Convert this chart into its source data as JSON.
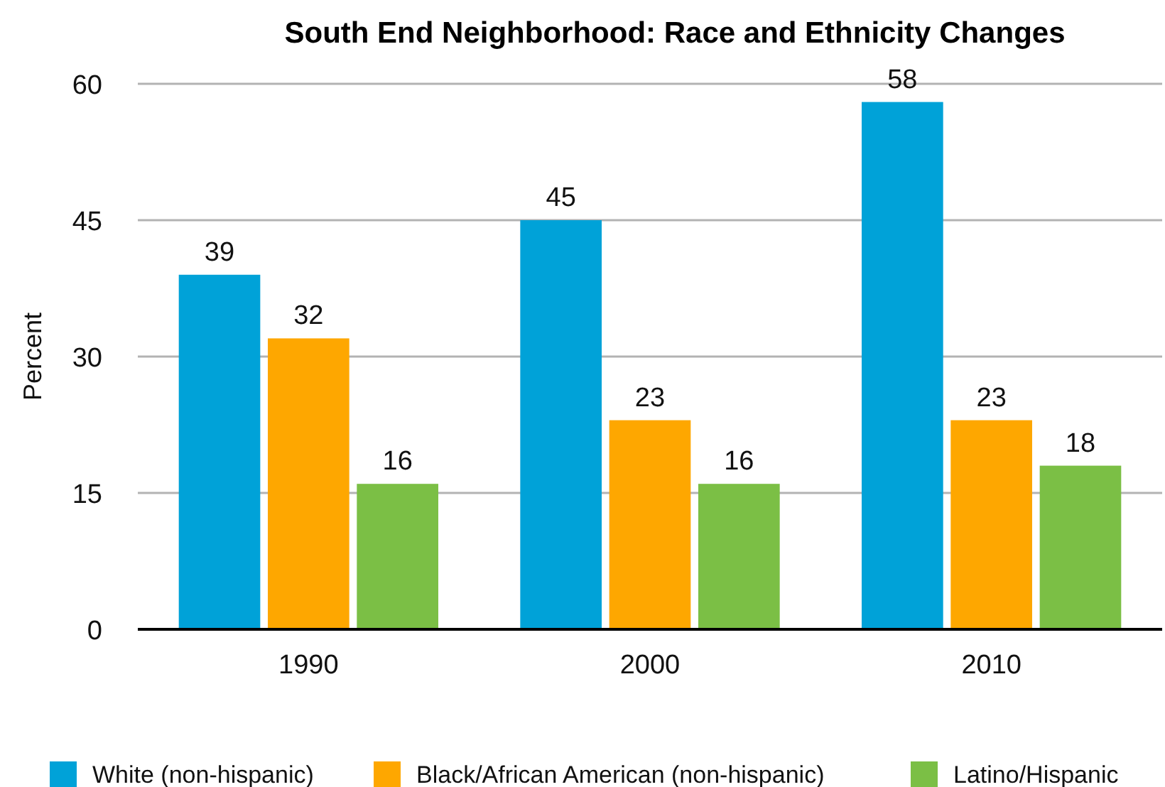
{
  "chart_data": {
    "type": "bar",
    "title": "South End Neighborhood: Race and Ethnicity Changes",
    "ylabel": "Percent",
    "categories": [
      "1990",
      "2000",
      "2010"
    ],
    "series": [
      {
        "name": "White (non-hispanic)",
        "color": "#00a2d8",
        "values": [
          39,
          45,
          58
        ]
      },
      {
        "name": "Black/African American (non-hispanic)",
        "color": "#fea700",
        "values": [
          32,
          23,
          23
        ]
      },
      {
        "name": "Latino/Hispanic",
        "color": "#7bbf45",
        "values": [
          16,
          16,
          18
        ]
      }
    ],
    "ylim": [
      0,
      60
    ],
    "yticks": [
      0,
      15,
      30,
      45,
      60
    ],
    "grid": "y",
    "legend": "bottom",
    "data_labels": true
  }
}
